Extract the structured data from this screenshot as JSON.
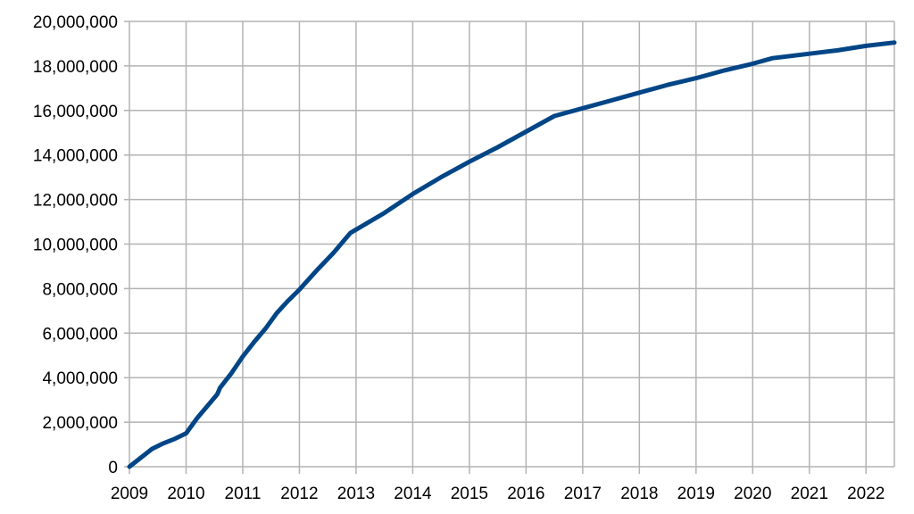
{
  "chart_data": {
    "type": "line",
    "title": "",
    "xlabel": "",
    "ylabel": "",
    "grid": true,
    "legend": "none",
    "xlim": [
      2009,
      2022.5
    ],
    "ylim": [
      0,
      20000000
    ],
    "x_ticks": [
      2009,
      2010,
      2011,
      2012,
      2013,
      2014,
      2015,
      2016,
      2017,
      2018,
      2019,
      2020,
      2021,
      2022
    ],
    "x_tick_labels": [
      "2009",
      "2010",
      "2011",
      "2012",
      "2013",
      "2014",
      "2015",
      "2016",
      "2017",
      "2018",
      "2019",
      "2020",
      "2021",
      "2022"
    ],
    "y_ticks": [
      0,
      2000000,
      4000000,
      6000000,
      8000000,
      10000000,
      12000000,
      14000000,
      16000000,
      18000000,
      20000000
    ],
    "y_tick_labels": [
      "0",
      "2,000,000",
      "4,000,000",
      "6,000,000",
      "8,000,000",
      "10,000,000",
      "12,000,000",
      "14,000,000",
      "16,000,000",
      "18,000,000",
      "20,000,000"
    ],
    "colors": {
      "series": "#004586",
      "grid": "#b3b3b3",
      "axis_text": "#000000"
    },
    "series": [
      {
        "x": [
          2009.0,
          2009.2,
          2009.4,
          2009.6,
          2009.8,
          2010.0,
          2010.2,
          2010.4,
          2010.55,
          2010.6,
          2010.8,
          2011.0,
          2011.2,
          2011.4,
          2011.6,
          2011.8,
          2012.0,
          2012.3,
          2012.6,
          2012.9,
          2013.0,
          2013.5,
          2014.0,
          2014.5,
          2015.0,
          2015.5,
          2016.0,
          2016.5,
          2017.0,
          2017.5,
          2018.0,
          2018.5,
          2019.0,
          2019.5,
          2020.0,
          2020.35,
          2021.0,
          2021.5,
          2022.0,
          2022.5
        ],
        "y": [
          0,
          400000,
          800000,
          1050000,
          1250000,
          1500000,
          2200000,
          2800000,
          3250000,
          3550000,
          4200000,
          4950000,
          5600000,
          6200000,
          6900000,
          7450000,
          7950000,
          8800000,
          9600000,
          10500000,
          10650000,
          11400000,
          12250000,
          13000000,
          13700000,
          14350000,
          15050000,
          15750000,
          16100000,
          16450000,
          16800000,
          17150000,
          17450000,
          17800000,
          18100000,
          18350000,
          18550000,
          18700000,
          18900000,
          19050000
        ]
      }
    ]
  }
}
